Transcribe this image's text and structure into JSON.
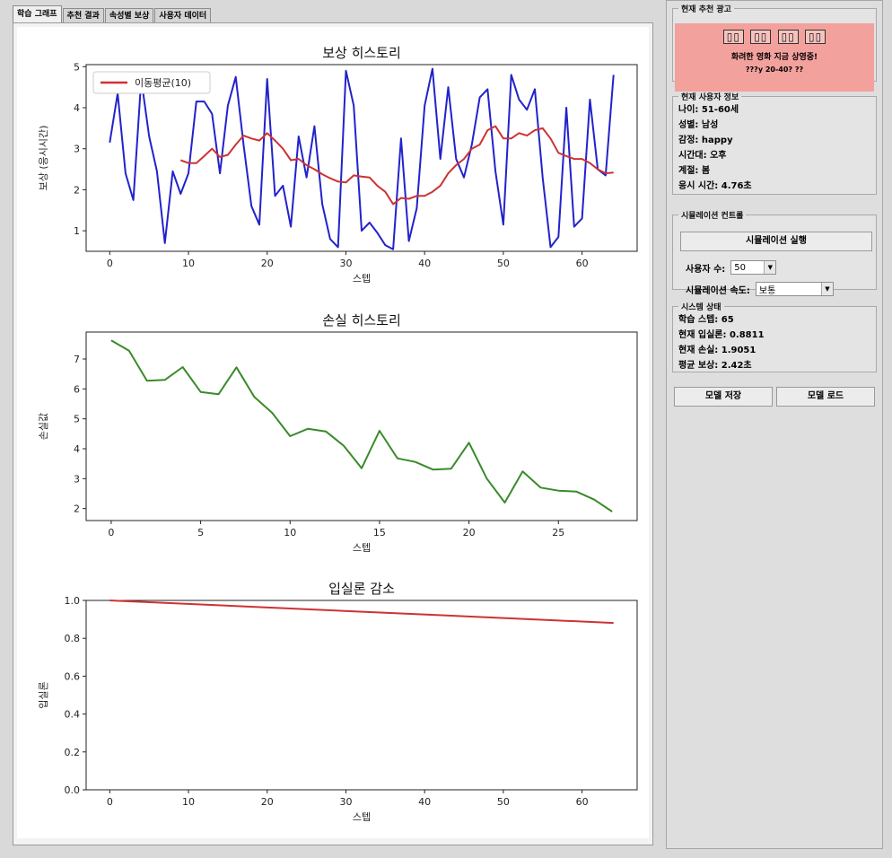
{
  "tabs": [
    {
      "label": "학습 그래프",
      "active": true
    },
    {
      "label": "추천 결과",
      "active": false
    },
    {
      "label": "속성별 보상",
      "active": false
    },
    {
      "label": "사용자 데이터",
      "active": false
    }
  ],
  "chart_data": [
    {
      "type": "line",
      "title": "보상 히스토리",
      "xlabel": "스텝",
      "ylabel": "보상 (응시시간)",
      "xlim": [
        -3,
        67
      ],
      "ylim": [
        0.5,
        5.05
      ],
      "xticks": [
        0,
        10,
        20,
        30,
        40,
        50,
        60
      ],
      "yticks": [
        1,
        2,
        3,
        4,
        5
      ],
      "legend_position": "top-left",
      "series": [
        {
          "name": "",
          "color": "#2222cc",
          "x": [
            0,
            1,
            2,
            3,
            4,
            5,
            6,
            7,
            8,
            9,
            10,
            11,
            12,
            13,
            14,
            15,
            16,
            17,
            18,
            19,
            20,
            21,
            22,
            23,
            24,
            25,
            26,
            27,
            28,
            29,
            30,
            31,
            32,
            33,
            34,
            35,
            36,
            37,
            38,
            39,
            40,
            41,
            42,
            43,
            44,
            45,
            46,
            47,
            48,
            49,
            50,
            51,
            52,
            53,
            54,
            55,
            56,
            57,
            58,
            59,
            60,
            61,
            62,
            63,
            64
          ],
          "y": [
            3.15,
            4.35,
            2.4,
            1.75,
            4.7,
            3.3,
            2.45,
            0.7,
            2.45,
            1.9,
            2.4,
            4.15,
            4.15,
            3.85,
            2.4,
            4.05,
            4.75,
            3.1,
            1.6,
            1.15,
            4.7,
            1.85,
            2.1,
            1.1,
            3.3,
            2.3,
            3.55,
            1.65,
            0.8,
            0.6,
            4.9,
            4.05,
            1.0,
            1.2,
            0.95,
            0.65,
            0.55,
            3.25,
            0.75,
            1.55,
            4.05,
            4.95,
            2.75,
            4.5,
            2.75,
            2.3,
            3.1,
            4.25,
            4.45,
            2.45,
            1.15,
            4.8,
            4.2,
            3.95,
            4.45,
            2.3,
            0.6,
            0.85,
            4.0,
            1.1,
            1.3,
            4.2,
            2.5,
            2.35,
            4.8
          ]
        },
        {
          "name": "이동평균(10)",
          "color": "#cc3333",
          "x": [
            9,
            10,
            11,
            12,
            13,
            14,
            15,
            16,
            17,
            18,
            19,
            20,
            21,
            22,
            23,
            24,
            25,
            26,
            27,
            28,
            29,
            30,
            31,
            32,
            33,
            34,
            35,
            36,
            37,
            38,
            39,
            40,
            41,
            42,
            43,
            44,
            45,
            46,
            47,
            48,
            49,
            50,
            51,
            52,
            53,
            54,
            55,
            56,
            57,
            58,
            59,
            60,
            61,
            62,
            63,
            64
          ],
          "y": [
            2.72,
            2.65,
            2.65,
            2.82,
            3.0,
            2.8,
            2.85,
            3.1,
            3.32,
            3.25,
            3.2,
            3.38,
            3.2,
            3.0,
            2.72,
            2.75,
            2.6,
            2.5,
            2.38,
            2.28,
            2.2,
            2.18,
            2.35,
            2.32,
            2.3,
            2.1,
            1.95,
            1.65,
            1.8,
            1.78,
            1.85,
            1.85,
            1.95,
            2.1,
            2.4,
            2.6,
            2.75,
            3.0,
            3.1,
            3.45,
            3.55,
            3.25,
            3.25,
            3.38,
            3.32,
            3.45,
            3.5,
            3.25,
            2.9,
            2.82,
            2.75,
            2.75,
            2.65,
            2.5,
            2.4,
            2.42
          ]
        }
      ]
    },
    {
      "type": "line",
      "title": "손실 히스토리",
      "xlabel": "스텝",
      "ylabel": "손실값",
      "xlim": [
        -1.4,
        29.4
      ],
      "ylim": [
        1.6,
        7.9
      ],
      "xticks": [
        0,
        5,
        10,
        15,
        20,
        25
      ],
      "yticks": [
        2,
        3,
        4,
        5,
        6,
        7
      ],
      "series": [
        {
          "name": "",
          "color": "#3a8a2a",
          "x": [
            0,
            1,
            2,
            3,
            4,
            5,
            6,
            7,
            8,
            9,
            10,
            11,
            12,
            13,
            14,
            15,
            16,
            17,
            18,
            19,
            20,
            21,
            22,
            23,
            24,
            25,
            26,
            27,
            28
          ],
          "y": [
            7.62,
            7.28,
            6.27,
            6.3,
            6.73,
            5.9,
            5.82,
            6.72,
            5.73,
            5.2,
            4.42,
            4.67,
            4.58,
            4.1,
            3.35,
            4.6,
            3.68,
            3.56,
            3.3,
            3.33,
            4.2,
            3.0,
            2.2,
            3.24,
            2.7,
            2.6,
            2.57,
            2.3,
            1.9
          ]
        }
      ]
    },
    {
      "type": "line",
      "title": "입실론 감소",
      "xlabel": "스텝",
      "ylabel": "입실론",
      "xlim": [
        -3,
        67
      ],
      "ylim": [
        0.0,
        1.0
      ],
      "xticks": [
        0,
        10,
        20,
        30,
        40,
        50,
        60
      ],
      "yticks": [
        "0.0",
        "0.2",
        "0.4",
        "0.6",
        "0.8",
        "1.0"
      ],
      "series": [
        {
          "name": "",
          "color": "#cc3333",
          "x": [
            0,
            64
          ],
          "y": [
            1.0,
            0.8811
          ]
        }
      ]
    }
  ],
  "ad": {
    "title": "현재 추천 광고",
    "headline": [
      "▯▯",
      "▯▯",
      "▯▯",
      "▯▯"
    ],
    "subtext": "화려한 영화 지금 상영중!",
    "detail": "???y 20-40? ??",
    "bg_color": "#f2a19c"
  },
  "user_info": {
    "title": "현재 사용자 정보",
    "lines": [
      "나이: 51-60세",
      "성별: 남성",
      "감정: happy",
      "시간대: 오후",
      "계절: 봄",
      "응시 시간: 4.76초"
    ]
  },
  "simulation": {
    "title": "시뮬레이션 컨트롤",
    "run_label": "시뮬레이션 실행",
    "user_count_label": "사용자 수:",
    "user_count_value": "50",
    "speed_label": "시뮬레이션 속도:",
    "speed_value": "보통"
  },
  "system_status": {
    "title": "시스템 상태",
    "lines": [
      "학습 스텝: 65",
      "현재 입실론: 0.8811",
      "현재 손실: 1.9051",
      "평균 보상: 2.42초"
    ]
  },
  "buttons": {
    "save_model": "모델 저장",
    "load_model": "모델 로드"
  }
}
